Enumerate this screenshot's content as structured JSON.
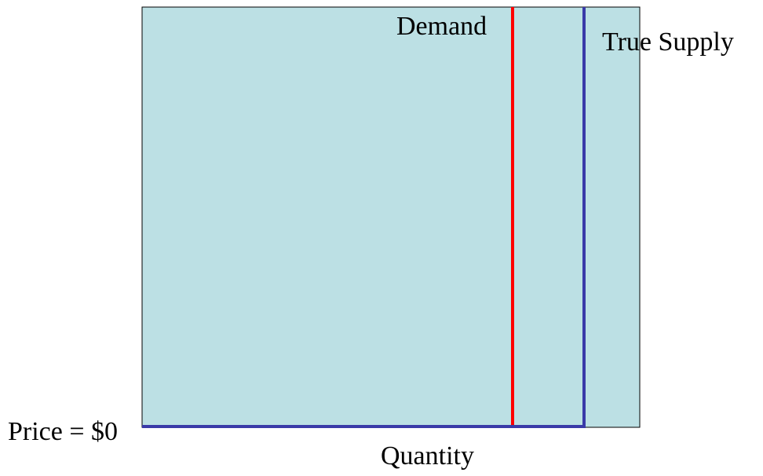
{
  "chart_data": {
    "type": "line",
    "title": "",
    "xlabel": "Quantity",
    "ylabel": "",
    "series": [
      {
        "name": "Demand",
        "color": "#ff0000"
      },
      {
        "name": "True Supply",
        "color": "#3a3aa8"
      }
    ],
    "price_label": "Price = $0",
    "panel_color": "#bce0e4"
  }
}
